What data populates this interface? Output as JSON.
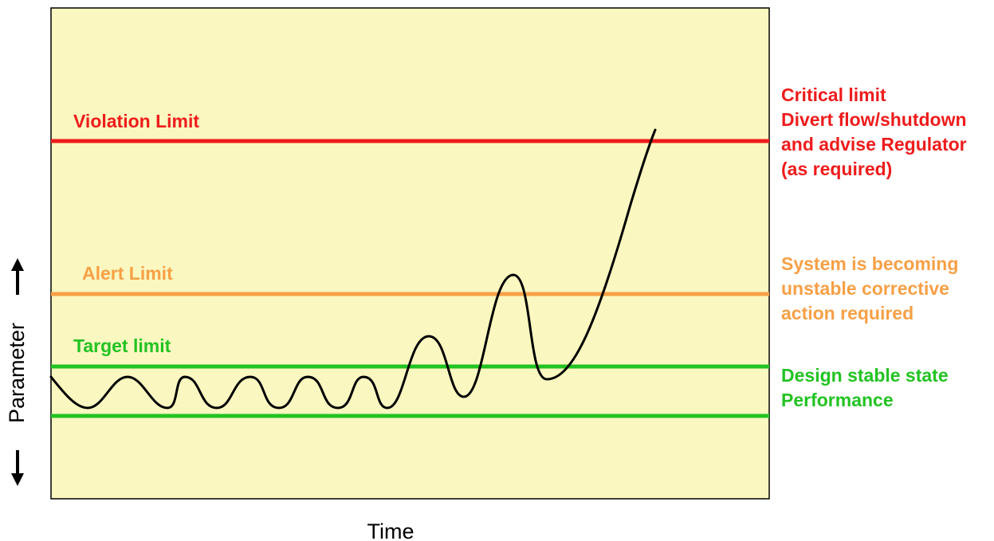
{
  "colors": {
    "panel_fill": "#fbf7c0",
    "panel_border": "#000000",
    "violation": "#ee1c1c",
    "alert": "#f7a046",
    "target": "#22c322",
    "trace": "#000000"
  },
  "limits": {
    "violation": {
      "label": "Violation Limit"
    },
    "alert": {
      "label": "Alert Limit"
    },
    "target": {
      "label": "Target limit"
    }
  },
  "notes": {
    "critical": [
      "Critical limit",
      "Divert flow/shutdown",
      "and advise Regulator",
      "(as required)"
    ],
    "alert": [
      "System is becoming",
      "unstable corrective",
      "action required"
    ],
    "design": [
      "Design stable state",
      "Performance"
    ]
  },
  "axes": {
    "x_label": "Time",
    "y_label": "Parameter"
  },
  "icons": {
    "y_up": "arrow-up-icon",
    "y_down": "arrow-down-icon"
  }
}
